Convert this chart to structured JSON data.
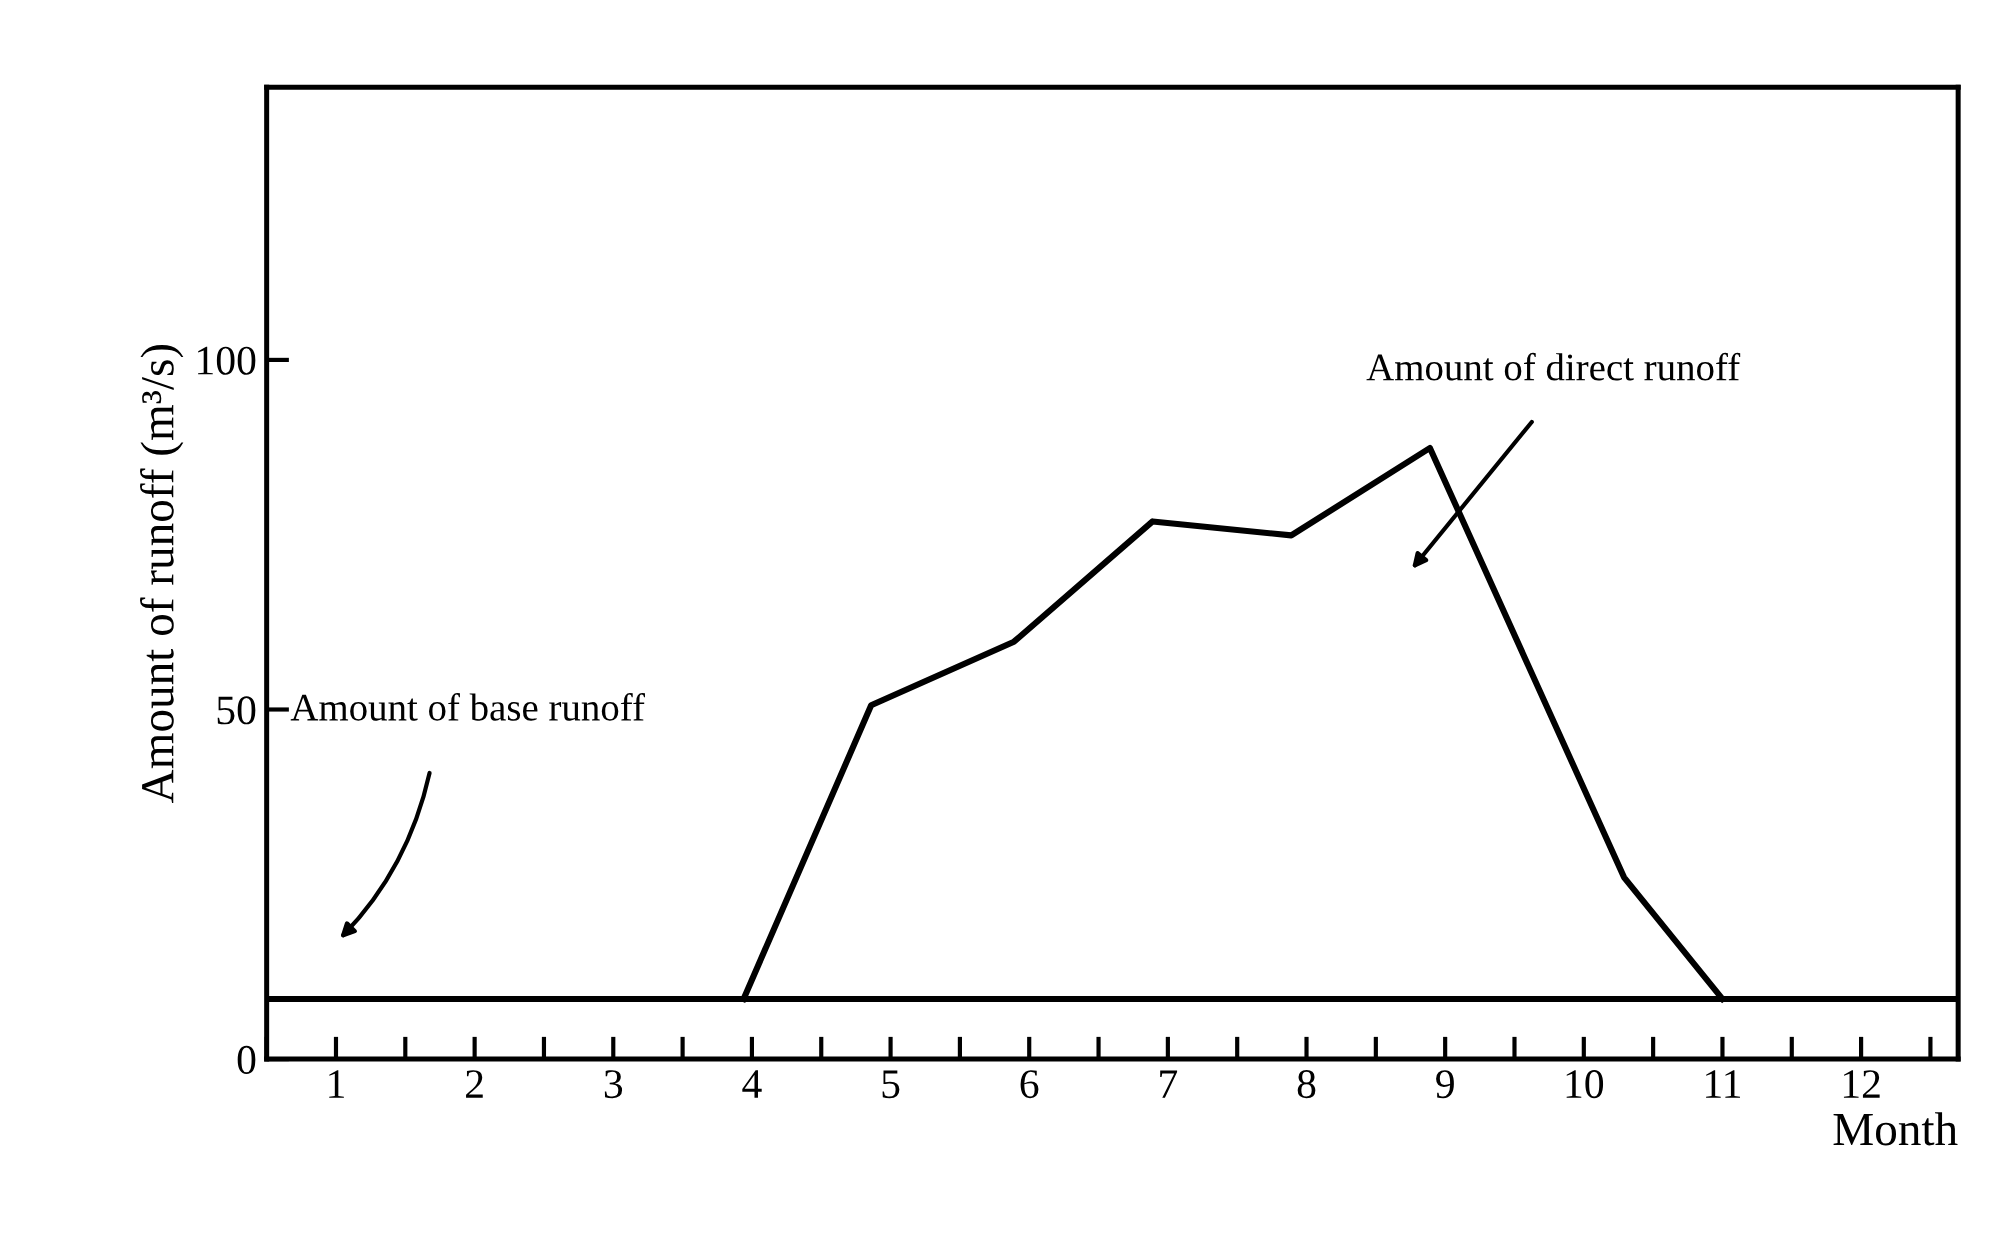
{
  "chart_data": {
    "type": "line",
    "xlabel": "Month",
    "ylabel": "Amount of runoff (m³/s)",
    "xlim": [
      0.5,
      12.7
    ],
    "ylim": [
      0,
      139
    ],
    "xticks": [
      {
        "value": 0.5,
        "label": null
      },
      {
        "value": 1,
        "label": "1"
      },
      {
        "value": 1.5,
        "label": null
      },
      {
        "value": 2,
        "label": "2"
      },
      {
        "value": 2.5,
        "label": null
      },
      {
        "value": 3,
        "label": "3"
      },
      {
        "value": 3.5,
        "label": null
      },
      {
        "value": 4,
        "label": "4"
      },
      {
        "value": 4.5,
        "label": null
      },
      {
        "value": 5,
        "label": "5"
      },
      {
        "value": 5.5,
        "label": null
      },
      {
        "value": 6,
        "label": "6"
      },
      {
        "value": 6.5,
        "label": null
      },
      {
        "value": 7,
        "label": "7"
      },
      {
        "value": 7.5,
        "label": null
      },
      {
        "value": 8,
        "label": "8"
      },
      {
        "value": 8.5,
        "label": null
      },
      {
        "value": 9,
        "label": "9"
      },
      {
        "value": 9.5,
        "label": null
      },
      {
        "value": 10,
        "label": "10"
      },
      {
        "value": 10.5,
        "label": null
      },
      {
        "value": 11,
        "label": "11"
      },
      {
        "value": 11.5,
        "label": null
      },
      {
        "value": 12,
        "label": "12"
      },
      {
        "value": 12.5,
        "label": null
      }
    ],
    "yticks": [
      0,
      50,
      100
    ],
    "grid": false,
    "legend": false,
    "marker": "none",
    "line_style": "solid",
    "series": [
      {
        "color": "#000000",
        "x": [
          0.5,
          12.7
        ],
        "values": [
          8.6,
          8.6
        ]
      },
      {
        "color": "#000000",
        "x": [
          3.94,
          4.86,
          5.89,
          6.89,
          7.89,
          8.89,
          10.29,
          11.0
        ],
        "values": [
          8.6,
          50.6,
          59.7,
          76.9,
          74.9,
          87.4,
          26,
          8.6
        ]
      }
    ],
    "annotations": [
      "Amount of base runoff",
      "Amount of direct runoff"
    ]
  }
}
